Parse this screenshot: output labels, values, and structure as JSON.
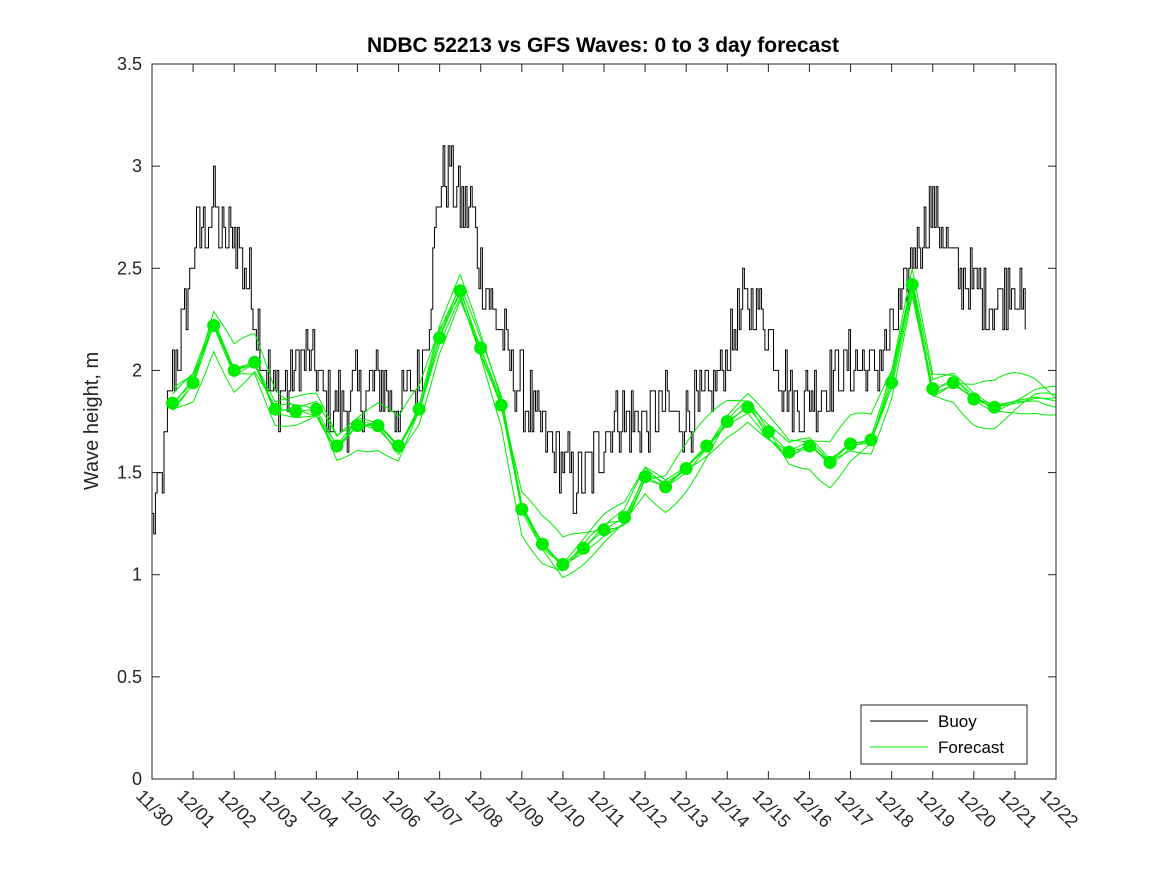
{
  "chart_data": {
    "type": "line",
    "title": "NDBC 52213 vs GFS Waves: 0 to 3 day forecast",
    "xlabel": "",
    "ylabel": "Wave height, m",
    "xlim": [
      0,
      22
    ],
    "ylim": [
      0,
      3.5
    ],
    "yticks": [
      0,
      0.5,
      1,
      1.5,
      2,
      2.5,
      3,
      3.5
    ],
    "ytick_labels": [
      "0",
      "0.5",
      "1",
      "1.5",
      "2",
      "2.5",
      "3",
      "3.5"
    ],
    "xtick_labels": [
      "11/30",
      "12/01",
      "12/02",
      "12/03",
      "12/04",
      "12/05",
      "12/06",
      "12/07",
      "12/08",
      "12/09",
      "12/10",
      "12/11",
      "12/12",
      "12/13",
      "12/14",
      "12/15",
      "12/16",
      "12/17",
      "12/18",
      "12/19",
      "12/20",
      "12/21",
      "12/22"
    ],
    "legend": {
      "position": "bottom-right",
      "entries": [
        "Buoy",
        "Forecast"
      ]
    },
    "colors": {
      "buoy": "#000000",
      "forecast": "#00ee00"
    },
    "series": [
      {
        "name": "Buoy",
        "x": [
          0.0,
          0.25,
          0.5,
          0.75,
          1.0,
          1.25,
          1.5,
          1.75,
          2.0,
          2.25,
          2.5,
          2.75,
          3.0,
          3.25,
          3.5,
          3.75,
          4.0,
          4.25,
          4.5,
          4.75,
          5.0,
          5.25,
          5.5,
          5.75,
          6.0,
          6.25,
          6.5,
          6.75,
          7.0,
          7.25,
          7.5,
          7.75,
          8.0,
          8.25,
          8.5,
          8.75,
          9.0,
          9.25,
          9.5,
          9.75,
          10.0,
          10.25,
          10.5,
          10.75,
          11.0,
          11.25,
          11.5,
          11.75,
          12.0,
          12.25,
          12.5,
          12.75,
          13.0,
          13.25,
          13.5,
          13.75,
          14.0,
          14.25,
          14.5,
          14.75,
          15.0,
          15.25,
          15.5,
          15.75,
          16.0,
          16.25,
          16.5,
          16.75,
          17.0,
          17.25,
          17.5,
          17.75,
          18.0,
          18.25,
          18.5,
          18.75,
          19.0,
          19.25,
          19.5,
          19.75,
          20.0,
          20.25,
          20.5,
          20.75,
          21.0,
          21.25
        ],
        "values": [
          1.25,
          1.5,
          2.0,
          2.2,
          2.6,
          2.7,
          2.8,
          2.6,
          2.7,
          2.5,
          2.3,
          2.0,
          1.9,
          1.9,
          2.0,
          2.1,
          2.0,
          1.8,
          1.85,
          1.8,
          1.9,
          1.9,
          1.95,
          1.9,
          1.8,
          1.9,
          2.0,
          2.3,
          2.9,
          3.0,
          2.8,
          2.8,
          2.5,
          2.3,
          2.2,
          2.0,
          1.9,
          1.8,
          1.7,
          1.6,
          1.55,
          1.45,
          1.45,
          1.55,
          1.7,
          1.8,
          1.75,
          1.75,
          1.75,
          1.8,
          1.8,
          1.75,
          1.8,
          1.8,
          1.85,
          1.95,
          2.1,
          2.25,
          2.35,
          2.3,
          2.2,
          2.0,
          1.9,
          1.85,
          1.85,
          1.9,
          1.95,
          2.0,
          2.0,
          2.05,
          2.0,
          2.1,
          2.15,
          2.3,
          2.55,
          2.7,
          2.8,
          2.65,
          2.5,
          2.45,
          2.4,
          2.35,
          2.3,
          2.4,
          2.45,
          2.25
        ]
      },
      {
        "name": "Forecast",
        "x": [
          0.5,
          1.0,
          1.5,
          2.0,
          2.5,
          3.0,
          3.5,
          4.0,
          4.5,
          5.0,
          5.5,
          6.0,
          6.5,
          7.0,
          7.5,
          8.0,
          8.5,
          9.0,
          9.5,
          10.0,
          10.5,
          11.0,
          11.5,
          12.0,
          12.5,
          13.0,
          13.5,
          14.0,
          14.5,
          15.0,
          15.5,
          16.0,
          16.5,
          17.0,
          17.5,
          18.0,
          18.5,
          19.0,
          19.5,
          20.0,
          20.5,
          21.0,
          21.5,
          22.0
        ],
        "values": [
          1.84,
          1.94,
          2.22,
          2.0,
          2.04,
          1.81,
          1.8,
          1.81,
          1.63,
          1.73,
          1.73,
          1.63,
          1.81,
          2.16,
          2.39,
          2.11,
          1.83,
          1.32,
          1.15,
          1.05,
          1.13,
          1.22,
          1.28,
          1.48,
          1.43,
          1.52,
          1.63,
          1.75,
          1.82,
          1.7,
          1.6,
          1.63,
          1.55,
          1.64,
          1.66,
          1.94,
          2.42,
          1.91,
          1.94,
          1.86,
          1.82,
          1.85,
          1.87,
          1.85
        ],
        "markers": [
          {
            "x": 0.5,
            "y": 1.84
          },
          {
            "x": 1.0,
            "y": 1.94
          },
          {
            "x": 1.5,
            "y": 2.22
          },
          {
            "x": 2.0,
            "y": 2.0
          },
          {
            "x": 2.5,
            "y": 2.04
          },
          {
            "x": 3.0,
            "y": 1.81
          },
          {
            "x": 3.5,
            "y": 1.8
          },
          {
            "x": 4.0,
            "y": 1.81
          },
          {
            "x": 4.5,
            "y": 1.63
          },
          {
            "x": 5.0,
            "y": 1.73
          },
          {
            "x": 5.5,
            "y": 1.73
          },
          {
            "x": 6.0,
            "y": 1.63
          },
          {
            "x": 6.5,
            "y": 1.81
          },
          {
            "x": 7.0,
            "y": 2.16
          },
          {
            "x": 7.5,
            "y": 2.39
          },
          {
            "x": 8.0,
            "y": 2.11
          },
          {
            "x": 8.5,
            "y": 1.83
          },
          {
            "x": 9.0,
            "y": 1.32
          },
          {
            "x": 9.5,
            "y": 1.15
          },
          {
            "x": 10.0,
            "y": 1.05
          },
          {
            "x": 10.5,
            "y": 1.13
          },
          {
            "x": 11.0,
            "y": 1.22
          },
          {
            "x": 11.5,
            "y": 1.28
          },
          {
            "x": 12.0,
            "y": 1.48
          },
          {
            "x": 12.5,
            "y": 1.43
          },
          {
            "x": 13.0,
            "y": 1.52
          },
          {
            "x": 13.5,
            "y": 1.63
          },
          {
            "x": 14.0,
            "y": 1.75
          },
          {
            "x": 14.5,
            "y": 1.82
          },
          {
            "x": 15.0,
            "y": 1.7
          },
          {
            "x": 15.5,
            "y": 1.6
          },
          {
            "x": 16.0,
            "y": 1.63
          },
          {
            "x": 16.5,
            "y": 1.55
          },
          {
            "x": 17.0,
            "y": 1.64
          },
          {
            "x": 17.5,
            "y": 1.66
          },
          {
            "x": 18.0,
            "y": 1.94
          },
          {
            "x": 18.5,
            "y": 2.42
          },
          {
            "x": 19.0,
            "y": 1.91
          },
          {
            "x": 19.5,
            "y": 1.94
          },
          {
            "x": 20.0,
            "y": 1.86
          },
          {
            "x": 20.5,
            "y": 1.82
          }
        ]
      }
    ]
  }
}
